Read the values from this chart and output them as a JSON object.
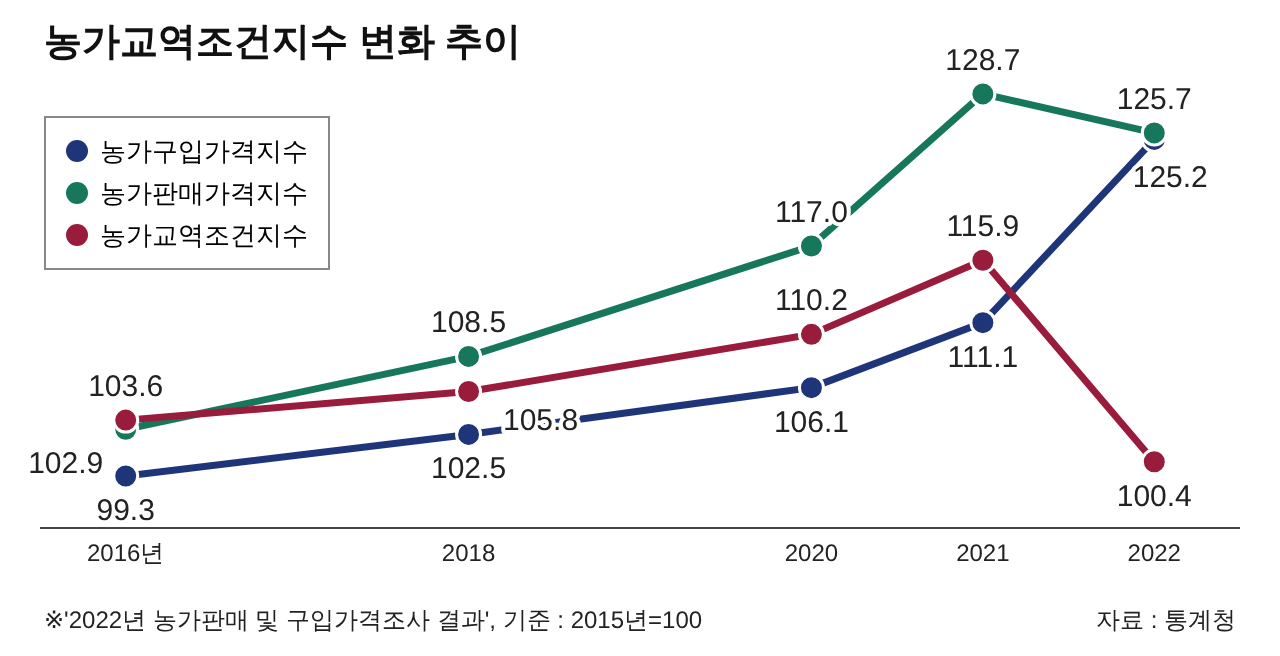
{
  "chart_data": {
    "type": "line",
    "title": "농가교역조건지수 변화 추이",
    "x": [
      2016,
      2018,
      2020,
      2021,
      2022
    ],
    "series": [
      {
        "name": "농가구입가격지수",
        "color": "#1f3579",
        "values": [
          99.3,
          102.5,
          106.1,
          111.1,
          125.2
        ],
        "value_labels": [
          "99.3",
          "102.5",
          "106.1",
          "111.1",
          "125.2"
        ]
      },
      {
        "name": "농가판매가격지수",
        "color": "#16775a",
        "values": [
          102.9,
          108.5,
          117.0,
          128.7,
          125.7
        ],
        "value_labels": [
          "102.9",
          "108.5",
          "117.0",
          "128.7",
          "125.7"
        ]
      },
      {
        "name": "농가교역조건지수",
        "color": "#9a1c3c",
        "values": [
          103.6,
          105.8,
          110.2,
          115.9,
          100.4
        ],
        "value_labels": [
          "103.6",
          "105.8",
          "110.2",
          "115.9",
          "100.4"
        ]
      }
    ],
    "xlim": [
      2015.5,
      2022.5
    ],
    "xticks": [
      {
        "value": 2016,
        "label": "2016년"
      },
      2018,
      2020,
      2021,
      2022
    ],
    "tick_labels": "x",
    "legend": "top left",
    "marker": "circle",
    "line_style": "solid",
    "annotations": [
      "※'2022년 농가판매 및 구입가격조사 결과', 기준 : 2015년=100",
      "자료 : 통계청"
    ]
  }
}
